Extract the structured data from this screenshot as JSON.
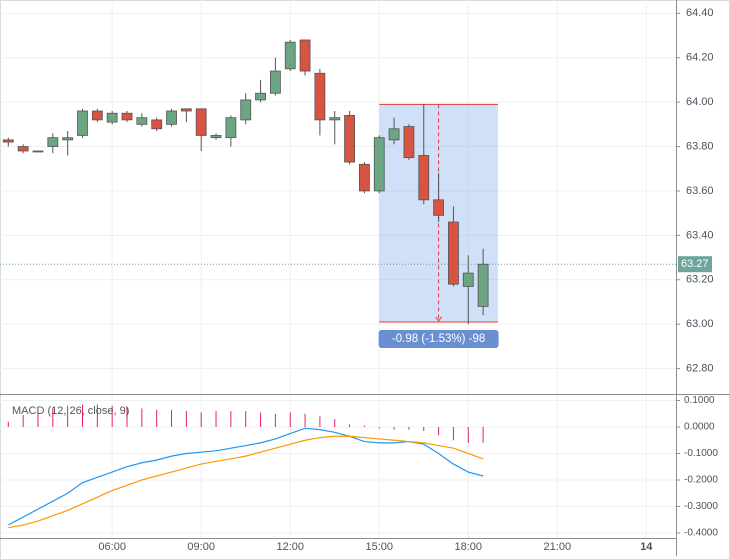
{
  "chart_data": [
    {
      "type": "candlestick",
      "x": [
        2.5,
        3,
        3.5,
        4,
        4.5,
        5,
        5.5,
        6,
        6.5,
        7,
        7.5,
        8,
        8.5,
        9,
        9.5,
        10,
        10.5,
        11,
        11.5,
        12,
        12.5,
        13,
        13.5,
        14,
        14.5,
        15,
        15.5,
        16,
        16.5,
        17,
        17.5,
        18,
        18.5
      ],
      "open": [
        63.83,
        63.8,
        63.78,
        63.8,
        63.83,
        63.85,
        63.96,
        63.91,
        63.95,
        63.9,
        63.92,
        63.9,
        63.97,
        63.97,
        63.84,
        63.84,
        63.92,
        64.01,
        64.04,
        64.15,
        64.28,
        64.13,
        63.92,
        63.94,
        63.72,
        63.6,
        63.83,
        63.89,
        63.76,
        63.56,
        63.46,
        63.17,
        63.08
      ],
      "high": [
        63.84,
        63.81,
        63.78,
        63.86,
        63.87,
        63.97,
        63.97,
        63.96,
        63.96,
        63.95,
        63.93,
        63.97,
        63.97,
        63.97,
        63.86,
        63.94,
        64.04,
        64.1,
        64.2,
        64.28,
        64.28,
        64.15,
        63.96,
        63.96,
        63.73,
        63.85,
        63.93,
        63.9,
        63.99,
        63.68,
        63.53,
        63.31,
        63.34
      ],
      "low": [
        63.8,
        63.77,
        63.78,
        63.77,
        63.76,
        63.84,
        63.91,
        63.9,
        63.91,
        63.89,
        63.87,
        63.89,
        63.91,
        63.78,
        63.83,
        63.8,
        63.9,
        64.0,
        64.03,
        64.14,
        64.12,
        63.85,
        63.81,
        63.72,
        63.59,
        63.59,
        63.81,
        63.74,
        63.54,
        63.46,
        63.17,
        63.0,
        63.04
      ],
      "close": [
        63.82,
        63.78,
        63.78,
        63.84,
        63.84,
        63.96,
        63.92,
        63.95,
        63.92,
        63.93,
        63.88,
        63.96,
        63.96,
        63.85,
        63.85,
        63.93,
        64.01,
        64.04,
        64.14,
        64.27,
        64.14,
        63.92,
        63.93,
        63.73,
        63.6,
        63.84,
        63.88,
        63.75,
        63.56,
        63.49,
        63.18,
        63.23,
        63.27
      ],
      "up_color": "#6ba583",
      "down_color": "#d75442",
      "xlim": [
        2.22,
        25.0
      ],
      "ylim": [
        62.69,
        64.46
      ],
      "xticks": [
        {
          "value": 6,
          "label": "06:00"
        },
        {
          "value": 9,
          "label": "09:00"
        },
        {
          "value": 12,
          "label": "12:00"
        },
        {
          "value": 15,
          "label": "15:00"
        },
        {
          "value": 18,
          "label": "18:00"
        },
        {
          "value": 21,
          "label": "21:00"
        },
        {
          "value": 24,
          "label": "14"
        }
      ],
      "yticks": [
        {
          "value": 64.4,
          "label": "64.40"
        },
        {
          "value": 64.2,
          "label": "64.20"
        },
        {
          "value": 64.0,
          "label": "64.00"
        },
        {
          "value": 63.8,
          "label": "63.80"
        },
        {
          "value": 63.6,
          "label": "63.60"
        },
        {
          "value": 63.4,
          "label": "63.40"
        },
        {
          "value": 63.2,
          "label": "63.20"
        },
        {
          "value": 63.0,
          "label": "63.00"
        },
        {
          "value": 62.8,
          "label": "62.80"
        }
      ],
      "last_price": 63.27,
      "measure": {
        "x_start": 15,
        "x_end": 19,
        "x_arrow": 17,
        "top": 63.99,
        "bottom": 63.01,
        "label": "-0.98 (-1.53%) -98"
      },
      "grid": true
    },
    {
      "type": "macd",
      "title": "MACD (12, 26, close, 9)",
      "x": [
        2.5,
        3,
        3.5,
        4,
        4.5,
        5,
        5.5,
        6,
        6.5,
        7,
        7.5,
        8,
        8.5,
        9,
        9.5,
        10,
        10.5,
        11,
        11.5,
        12,
        12.5,
        13,
        13.5,
        14,
        14.5,
        15,
        15.5,
        16,
        16.5,
        17,
        17.5,
        18,
        18.5
      ],
      "histogram": {
        "color": "#e91e63",
        "values": [
          0.02,
          0.045,
          0.06,
          0.07,
          0.08,
          0.085,
          0.085,
          0.08,
          0.075,
          0.07,
          0.065,
          0.065,
          0.06,
          0.055,
          0.06,
          0.06,
          0.06,
          0.055,
          0.05,
          0.055,
          0.05,
          0.04,
          0.03,
          0.01,
          0.005,
          -0.005,
          -0.01,
          -0.01,
          -0.015,
          -0.03,
          -0.05,
          -0.06,
          -0.06
        ]
      },
      "series": [
        {
          "color": "#2196f3",
          "values": [
            -0.37,
            -0.34,
            -0.31,
            -0.28,
            -0.25,
            -0.21,
            -0.19,
            -0.17,
            -0.15,
            -0.135,
            -0.125,
            -0.11,
            -0.1,
            -0.095,
            -0.09,
            -0.08,
            -0.07,
            -0.06,
            -0.045,
            -0.025,
            -0.005,
            -0.01,
            -0.02,
            -0.035,
            -0.055,
            -0.06,
            -0.06,
            -0.055,
            -0.065,
            -0.1,
            -0.14,
            -0.17,
            -0.185
          ]
        },
        {
          "color": "#ff9800",
          "values": [
            -0.38,
            -0.37,
            -0.355,
            -0.335,
            -0.315,
            -0.29,
            -0.265,
            -0.24,
            -0.22,
            -0.2,
            -0.185,
            -0.17,
            -0.155,
            -0.14,
            -0.13,
            -0.12,
            -0.11,
            -0.095,
            -0.08,
            -0.065,
            -0.05,
            -0.04,
            -0.035,
            -0.035,
            -0.04,
            -0.045,
            -0.05,
            -0.055,
            -0.06,
            -0.07,
            -0.08,
            -0.1,
            -0.12
          ]
        }
      ],
      "ylim": [
        -0.419,
        0.117
      ],
      "yticks": [
        {
          "value": 0.1,
          "label": "0.1000"
        },
        {
          "value": 0,
          "label": "0.0000"
        },
        {
          "value": -0.1,
          "label": "-0.1000"
        },
        {
          "value": -0.2,
          "label": "-0.2000"
        },
        {
          "value": -0.3,
          "label": "-0.3000"
        },
        {
          "value": -0.4,
          "label": "-0.4000"
        }
      ]
    }
  ]
}
